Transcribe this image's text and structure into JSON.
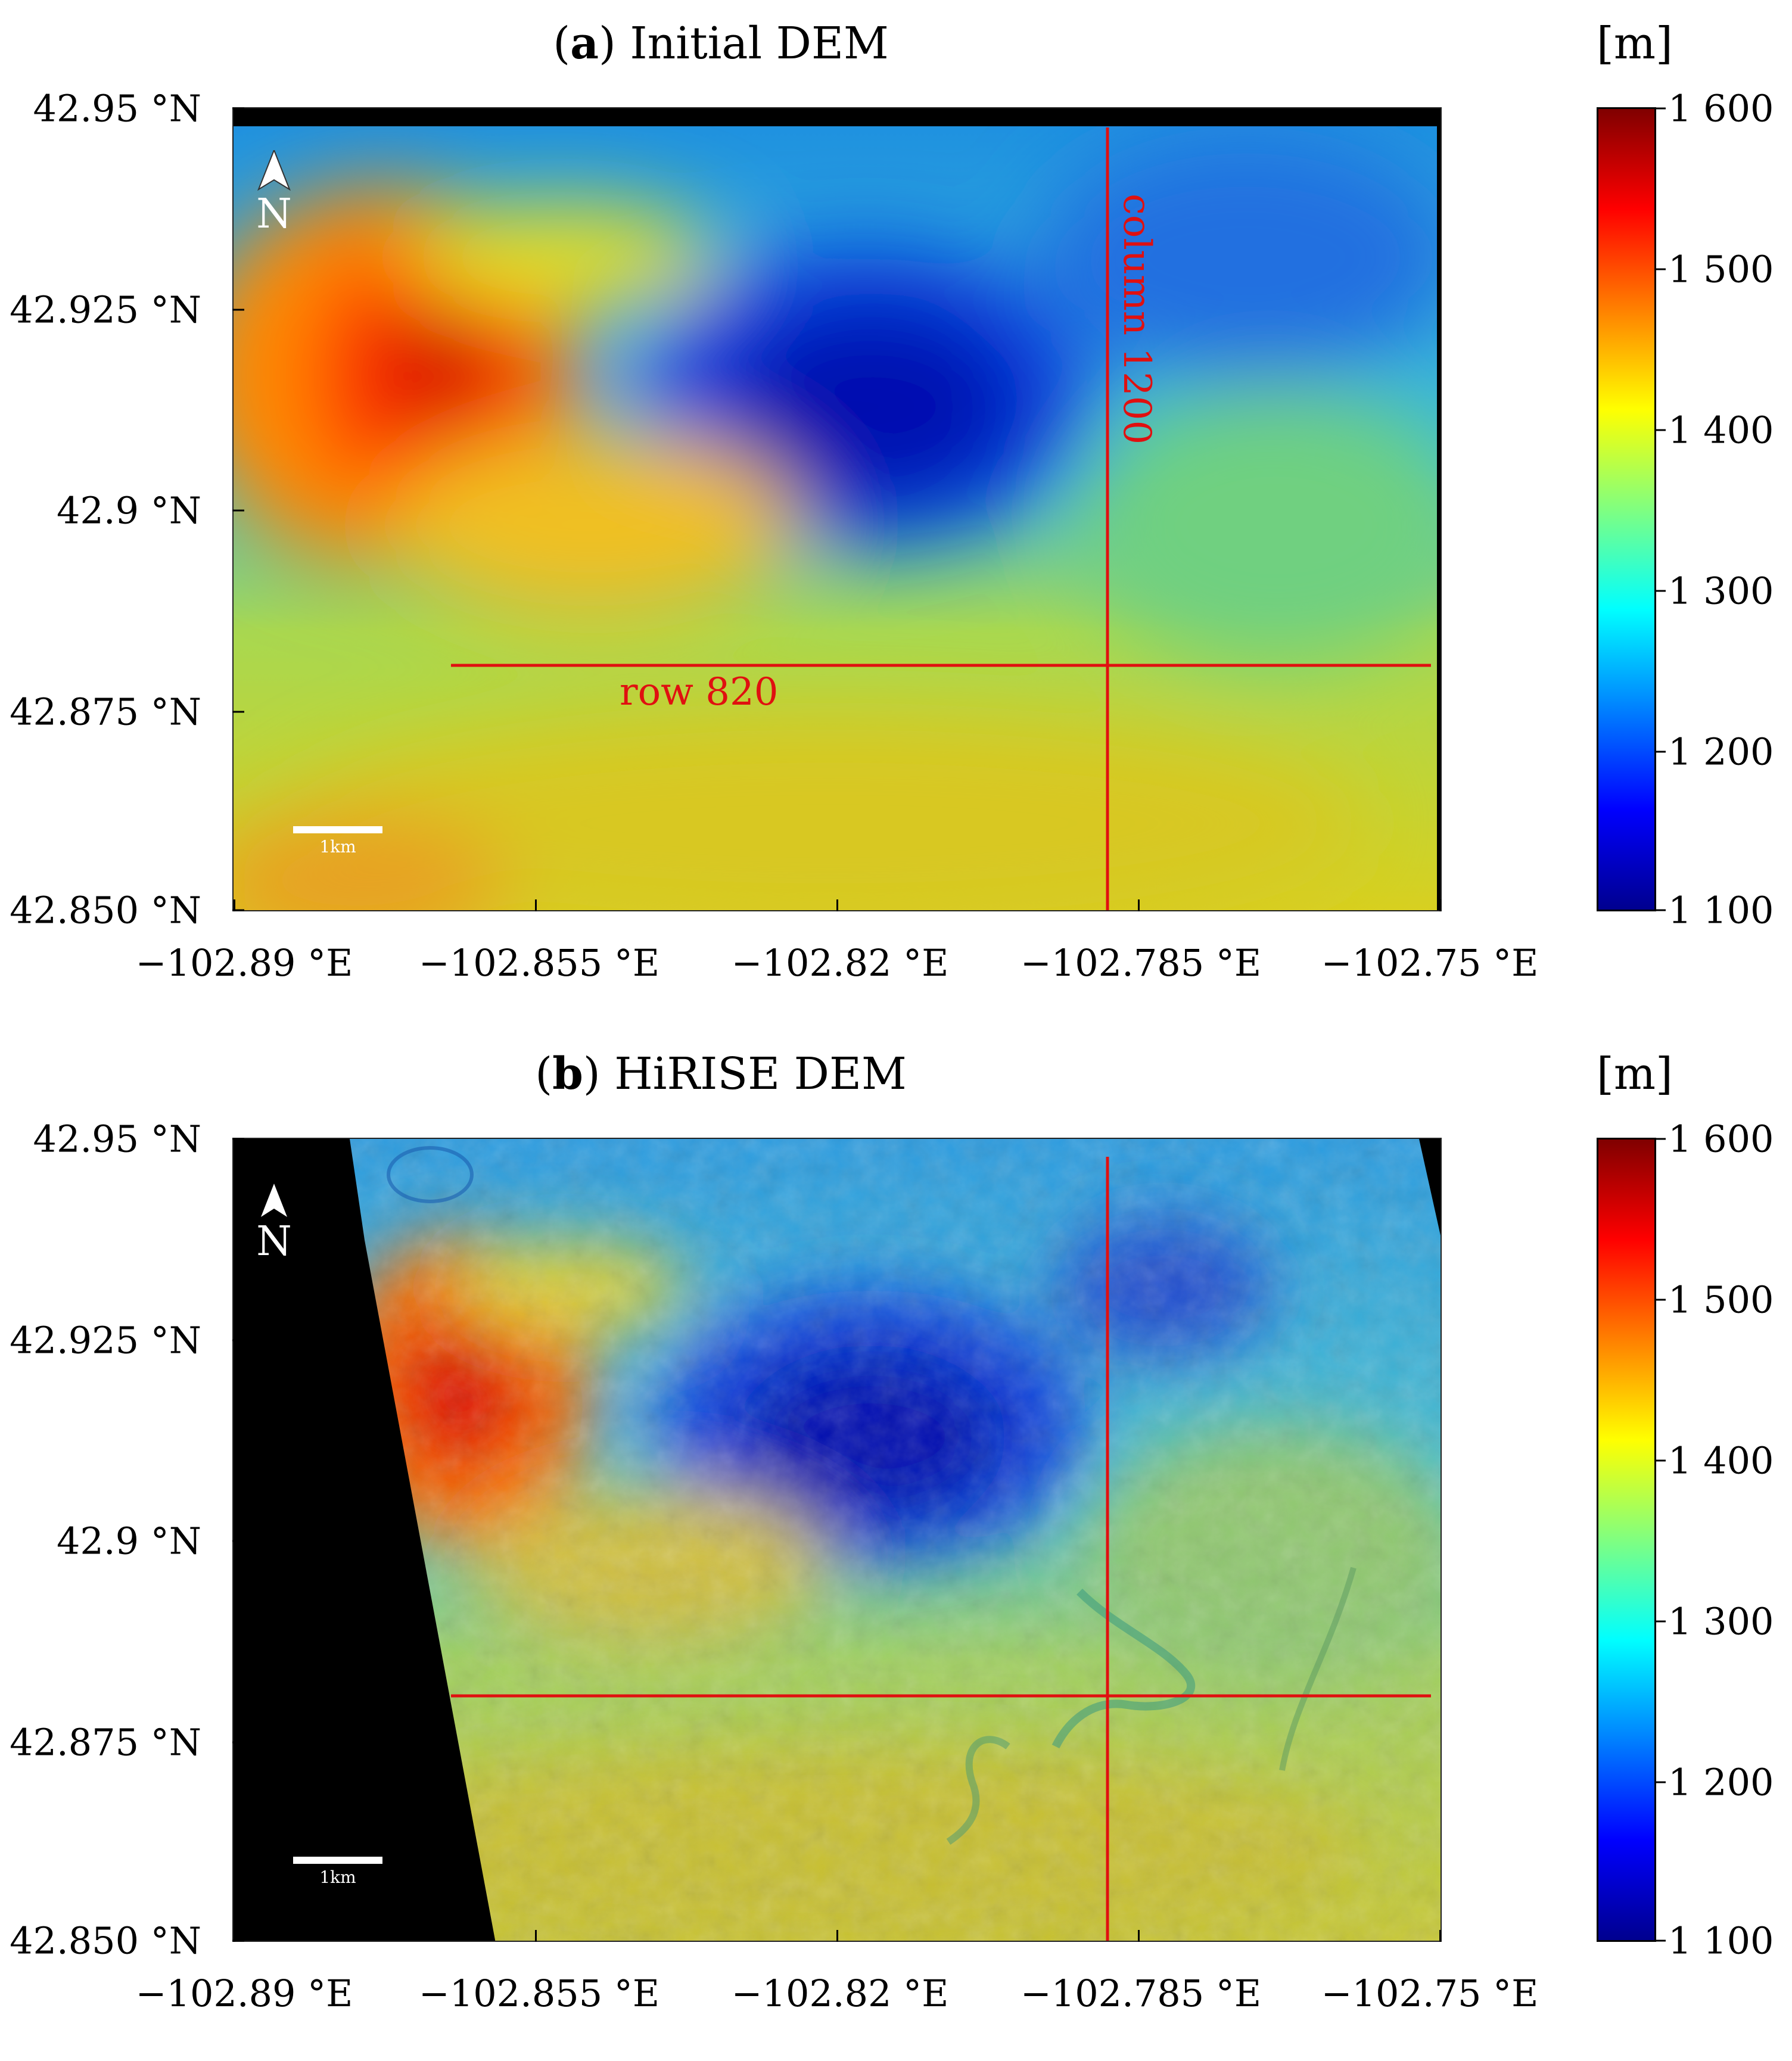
{
  "panels": [
    {
      "title_letter": "a",
      "title_open": "(",
      "title_rest": ") Initial DEM",
      "unit": "[m]",
      "row_label": "row 820",
      "column_label": "column 1200",
      "north_label": "N",
      "scale_label": "1km"
    },
    {
      "title_letter": "b",
      "title_open": "(",
      "title_rest": ") HiRISE DEM",
      "unit": "[m]",
      "north_label": "N",
      "scale_label": "1km"
    }
  ],
  "y_ticks": [
    "42.95 °N",
    "42.925 °N",
    "42.9 °N",
    "42.875 °N",
    "42.850 °N"
  ],
  "x_ticks": [
    "−102.89 °E",
    "−102.855 °E",
    "−102.82 °E",
    "−102.785 °E",
    "−102.75 °E"
  ],
  "colorbar_ticks": [
    "1 600",
    "1 500",
    "1 400",
    "1 300",
    "1 200",
    "1 100"
  ],
  "colors": {
    "profile_line": "#e01010",
    "colormap": [
      "#00008f",
      "#0000ff",
      "#0080ff",
      "#00ffff",
      "#80ff80",
      "#ffff00",
      "#ff8000",
      "#ff0000",
      "#800000"
    ]
  }
}
